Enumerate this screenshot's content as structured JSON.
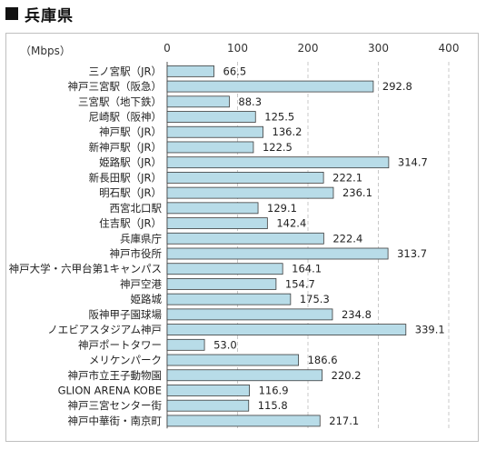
{
  "header": {
    "title": "兵庫県"
  },
  "chart_data": {
    "type": "bar",
    "orientation": "horizontal",
    "unit_label": "（Mbps）",
    "xlim": [
      0,
      400
    ],
    "xticks": [
      0,
      100,
      200,
      300,
      400
    ],
    "grid": "dashed-vertical",
    "categories": [
      "三ノ宮駅（JR）",
      "神戸三宮駅（阪急）",
      "三宮駅（地下鉄）",
      "尼崎駅（阪神）",
      "神戸駅（JR）",
      "新神戸駅（JR）",
      "姫路駅（JR）",
      "新長田駅（JR）",
      "明石駅（JR）",
      "西宮北口駅",
      "住吉駅（JR）",
      "兵庫県庁",
      "神戸市役所",
      "神戸大学・六甲台第1キャンパス",
      "神戸空港",
      "姫路城",
      "阪神甲子園球場",
      "ノエビアスタジアム神戸",
      "神戸ポートタワー",
      "メリケンパーク",
      "神戸市立王子動物園",
      "GLION ARENA KOBE",
      "神戸三宮センター街",
      "神戸中華街・南京町"
    ],
    "values": [
      66.5,
      292.8,
      88.3,
      125.5,
      136.2,
      122.5,
      314.7,
      222.1,
      236.1,
      129.1,
      142.4,
      222.4,
      313.7,
      164.1,
      154.7,
      175.3,
      234.8,
      339.1,
      53.0,
      186.6,
      220.2,
      116.9,
      115.8,
      217.1
    ],
    "value_labels": [
      "66.5",
      "292.8",
      "88.3",
      "125.5",
      "136.2",
      "122.5",
      "314.7",
      "222.1",
      "236.1",
      "129.1",
      "142.4",
      "222.4",
      "313.7",
      "164.1",
      "154.7",
      "175.3",
      "234.8",
      "339.1",
      "53.0",
      "186.6",
      "220.2",
      "116.9",
      "115.8",
      "217.1"
    ],
    "colors": {
      "bar_fill": "#b8dce8",
      "bar_stroke": "#3c3c3c",
      "grid": "#c8c8c8"
    }
  }
}
